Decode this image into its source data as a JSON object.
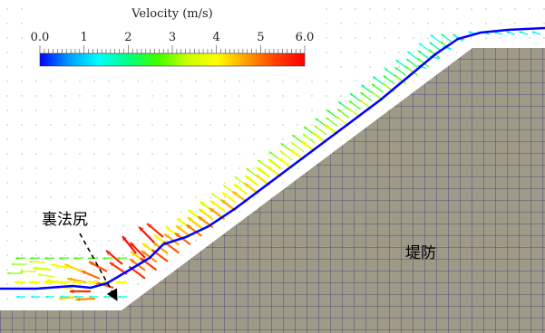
{
  "colorbar": {
    "title": "Velocity (m/s)",
    "ticks": [
      "0.0",
      "1",
      "2",
      "3",
      "4",
      "5",
      "6.0"
    ],
    "min": 0,
    "max": 6,
    "stops": [
      "#0000ff",
      "#00a0ff",
      "#00ffff",
      "#00ff80",
      "#40ff00",
      "#c8ff00",
      "#ffff00",
      "#ffa000",
      "#ff4000",
      "#ff0000"
    ]
  },
  "labels": {
    "toe": "裏法尻",
    "levee": "堤防"
  },
  "colors": {
    "levee_fill": "#9e9a87",
    "levee_grid": "#3a3a78",
    "water_surface": "#0000ff",
    "slope_edge": "#ffffff"
  }
}
